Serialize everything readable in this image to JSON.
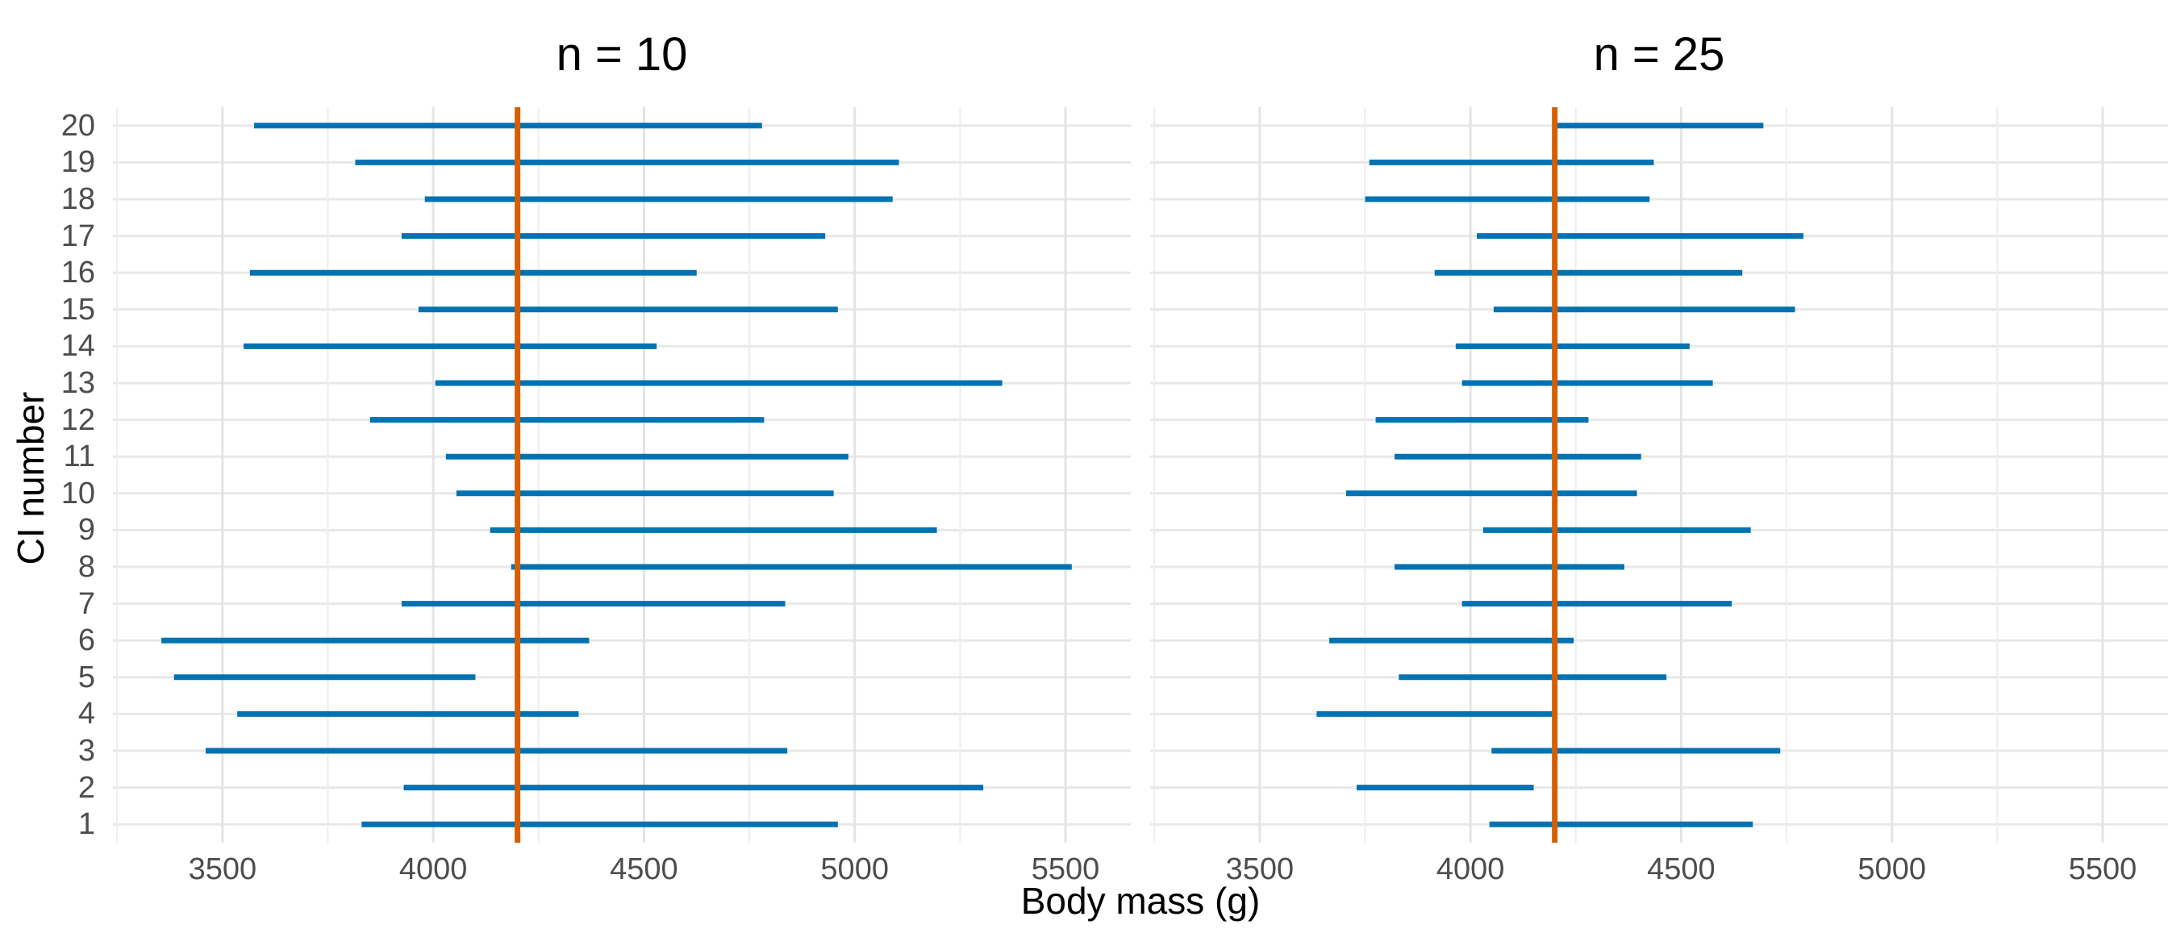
{
  "chart_data": {
    "type": "line",
    "subtype": "horizontal-confidence-interval-segments",
    "x_label": "Body mass (g)",
    "y_label": "CI number",
    "x_ticks": [
      3500,
      4000,
      4500,
      5000,
      5500
    ],
    "x_minor_gridlines": [
      3250,
      3750,
      4250,
      4750,
      5250
    ],
    "x_domain": [
      3240,
      5655
    ],
    "y_categories": [
      1,
      2,
      3,
      4,
      5,
      6,
      7,
      8,
      9,
      10,
      11,
      12,
      13,
      14,
      15,
      16,
      17,
      18,
      19,
      20
    ],
    "true_value_line": 4200,
    "grid": "on",
    "legend": "none",
    "facets": [
      {
        "title": "n = 10",
        "intervals": [
          {
            "ci": 1,
            "lower": 3830,
            "upper": 4960
          },
          {
            "ci": 2,
            "lower": 3930,
            "upper": 5305
          },
          {
            "ci": 3,
            "lower": 3460,
            "upper": 4840
          },
          {
            "ci": 4,
            "lower": 3535,
            "upper": 4345
          },
          {
            "ci": 5,
            "lower": 3385,
            "upper": 4100
          },
          {
            "ci": 6,
            "lower": 3355,
            "upper": 4370
          },
          {
            "ci": 7,
            "lower": 3925,
            "upper": 4835
          },
          {
            "ci": 8,
            "lower": 4185,
            "upper": 5515
          },
          {
            "ci": 9,
            "lower": 4135,
            "upper": 5195
          },
          {
            "ci": 10,
            "lower": 4055,
            "upper": 4950
          },
          {
            "ci": 11,
            "lower": 4030,
            "upper": 4985
          },
          {
            "ci": 12,
            "lower": 3850,
            "upper": 4785
          },
          {
            "ci": 13,
            "lower": 4005,
            "upper": 5350
          },
          {
            "ci": 14,
            "lower": 3550,
            "upper": 4530
          },
          {
            "ci": 15,
            "lower": 3965,
            "upper": 4960
          },
          {
            "ci": 16,
            "lower": 3565,
            "upper": 4625
          },
          {
            "ci": 17,
            "lower": 3925,
            "upper": 4930
          },
          {
            "ci": 18,
            "lower": 3980,
            "upper": 5090
          },
          {
            "ci": 19,
            "lower": 3815,
            "upper": 5105
          },
          {
            "ci": 20,
            "lower": 3575,
            "upper": 4780
          }
        ]
      },
      {
        "title": "n = 25",
        "intervals": [
          {
            "ci": 1,
            "lower": 4045,
            "upper": 4670
          },
          {
            "ci": 2,
            "lower": 3730,
            "upper": 4150
          },
          {
            "ci": 3,
            "lower": 4050,
            "upper": 4735
          },
          {
            "ci": 4,
            "lower": 3635,
            "upper": 4195
          },
          {
            "ci": 5,
            "lower": 3830,
            "upper": 4465
          },
          {
            "ci": 6,
            "lower": 3665,
            "upper": 4245
          },
          {
            "ci": 7,
            "lower": 3980,
            "upper": 4620
          },
          {
            "ci": 8,
            "lower": 3820,
            "upper": 4365
          },
          {
            "ci": 9,
            "lower": 4030,
            "upper": 4665
          },
          {
            "ci": 10,
            "lower": 3705,
            "upper": 4395
          },
          {
            "ci": 11,
            "lower": 3820,
            "upper": 4405
          },
          {
            "ci": 12,
            "lower": 3775,
            "upper": 4280
          },
          {
            "ci": 13,
            "lower": 3980,
            "upper": 4575
          },
          {
            "ci": 14,
            "lower": 3965,
            "upper": 4520
          },
          {
            "ci": 15,
            "lower": 4055,
            "upper": 4770
          },
          {
            "ci": 16,
            "lower": 3915,
            "upper": 4645
          },
          {
            "ci": 17,
            "lower": 4015,
            "upper": 4790
          },
          {
            "ci": 18,
            "lower": 3750,
            "upper": 4425
          },
          {
            "ci": 19,
            "lower": 3760,
            "upper": 4435
          },
          {
            "ci": 20,
            "lower": 4195,
            "upper": 4695
          }
        ]
      }
    ],
    "colors": {
      "segment": "#0072B2",
      "true_line": "#D55E00",
      "tick_label": "#4d4d4d",
      "axis_title": "#000000",
      "grid_row": "#e8e8e8",
      "grid_major": "#e4e4e4",
      "grid_minor": "#eeeeee",
      "background": "#ffffff"
    }
  }
}
